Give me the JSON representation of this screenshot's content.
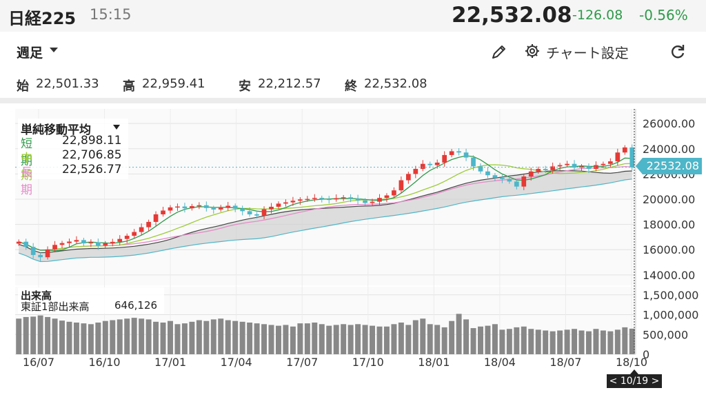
{
  "header": {
    "ticker": "日経225",
    "time": "15:15",
    "price": "22,532.08",
    "change": "-126.08",
    "change_pct": "-0.56%"
  },
  "toolbar": {
    "period": "週足",
    "settings_label": "チャート設定"
  },
  "ohlc": {
    "open_label": "始",
    "open": "22,501.33",
    "high_label": "高",
    "high": "22,959.41",
    "low_label": "安",
    "low": "22,212.57",
    "close_label": "終",
    "close": "22,532.08"
  },
  "legend": {
    "title": "単純移動平均",
    "short_label": "短期",
    "short_value": "22,898.11",
    "mid_label": "中期",
    "mid_value": "22,706.85",
    "long_label": "長期",
    "long_value": "22,526.77"
  },
  "volume_legend": {
    "title": "出来高",
    "series_label": "東証1部出来高",
    "series_value": "646,126"
  },
  "current_price_tag": "22532.08",
  "cursor_date": "< 10/19 >",
  "colors": {
    "up": "#e53935",
    "down": "#4db6c8",
    "short_ma": "#2e9a4a",
    "mid_ma": "#9ccc34",
    "long_ma": "#e58ac8",
    "volume": "#888888",
    "positive": "#2e9a4a"
  },
  "chart_data": {
    "type": "line",
    "x_ticks": [
      "16/07",
      "16/10",
      "17/01",
      "17/04",
      "17/07",
      "17/10",
      "18/01",
      "18/04",
      "18/07",
      "18/10"
    ],
    "price_axis": {
      "ticks": [
        "26000.00",
        "24000.00",
        "22000.00",
        "20000.00",
        "18000.00",
        "16000.00",
        "14000.00"
      ],
      "ylim": [
        13500,
        26500
      ]
    },
    "volume_axis": {
      "ticks": [
        "1,500,000",
        "1,000,000",
        "500,000",
        "0"
      ],
      "ylim": [
        0,
        1600000
      ]
    },
    "close": [
      16630,
      16220,
      15580,
      15400,
      16020,
      16380,
      16520,
      16640,
      16760,
      16500,
      16580,
      16320,
      16500,
      16620,
      16850,
      17100,
      17400,
      17780,
      18200,
      18800,
      19100,
      19350,
      19420,
      19280,
      19450,
      19520,
      19300,
      19180,
      19310,
      19480,
      19250,
      19050,
      18800,
      18700,
      19200,
      19400,
      19650,
      19750,
      19880,
      19980,
      20020,
      20100,
      20020,
      19980,
      20080,
      20150,
      20050,
      19900,
      19700,
      19800,
      20100,
      20300,
      20700,
      21500,
      22000,
      22400,
      22800,
      22700,
      22900,
      23500,
      23800,
      23700,
      23300,
      22600,
      22200,
      21900,
      21700,
      21600,
      21400,
      21000,
      21800,
      22200,
      22400,
      22300,
      22600,
      22700,
      22800,
      22500,
      22600,
      22400,
      22700,
      22800,
      23000,
      23700,
      24100,
      22532
    ],
    "volume": [
      900000,
      940000,
      950000,
      980000,
      940000,
      900000,
      850000,
      820000,
      800000,
      780000,
      760000,
      800000,
      840000,
      860000,
      880000,
      900000,
      920000,
      900000,
      880000,
      820000,
      800000,
      840000,
      760000,
      780000,
      820000,
      860000,
      840000,
      880000,
      900000,
      860000,
      840000,
      820000,
      800000,
      780000,
      760000,
      740000,
      720000,
      740000,
      700000,
      780000,
      780000,
      800000,
      760000,
      720000,
      740000,
      760000,
      740000,
      760000,
      740000,
      720000,
      700000,
      700000,
      760000,
      800000,
      740000,
      860000,
      900000,
      760000,
      740000,
      680000,
      840000,
      1020000,
      880000,
      660000,
      700000,
      720000,
      760000,
      620000,
      640000,
      680000,
      700000,
      640000,
      620000,
      600000,
      580000,
      600000,
      620000,
      640000,
      600000,
      580000,
      640000,
      600000,
      580000,
      620000,
      680000,
      646126
    ],
    "legend": [
      "短期 22,898.11",
      "中期 22,706.85",
      "長期 22,526.77"
    ],
    "current_value": 22532.08
  }
}
